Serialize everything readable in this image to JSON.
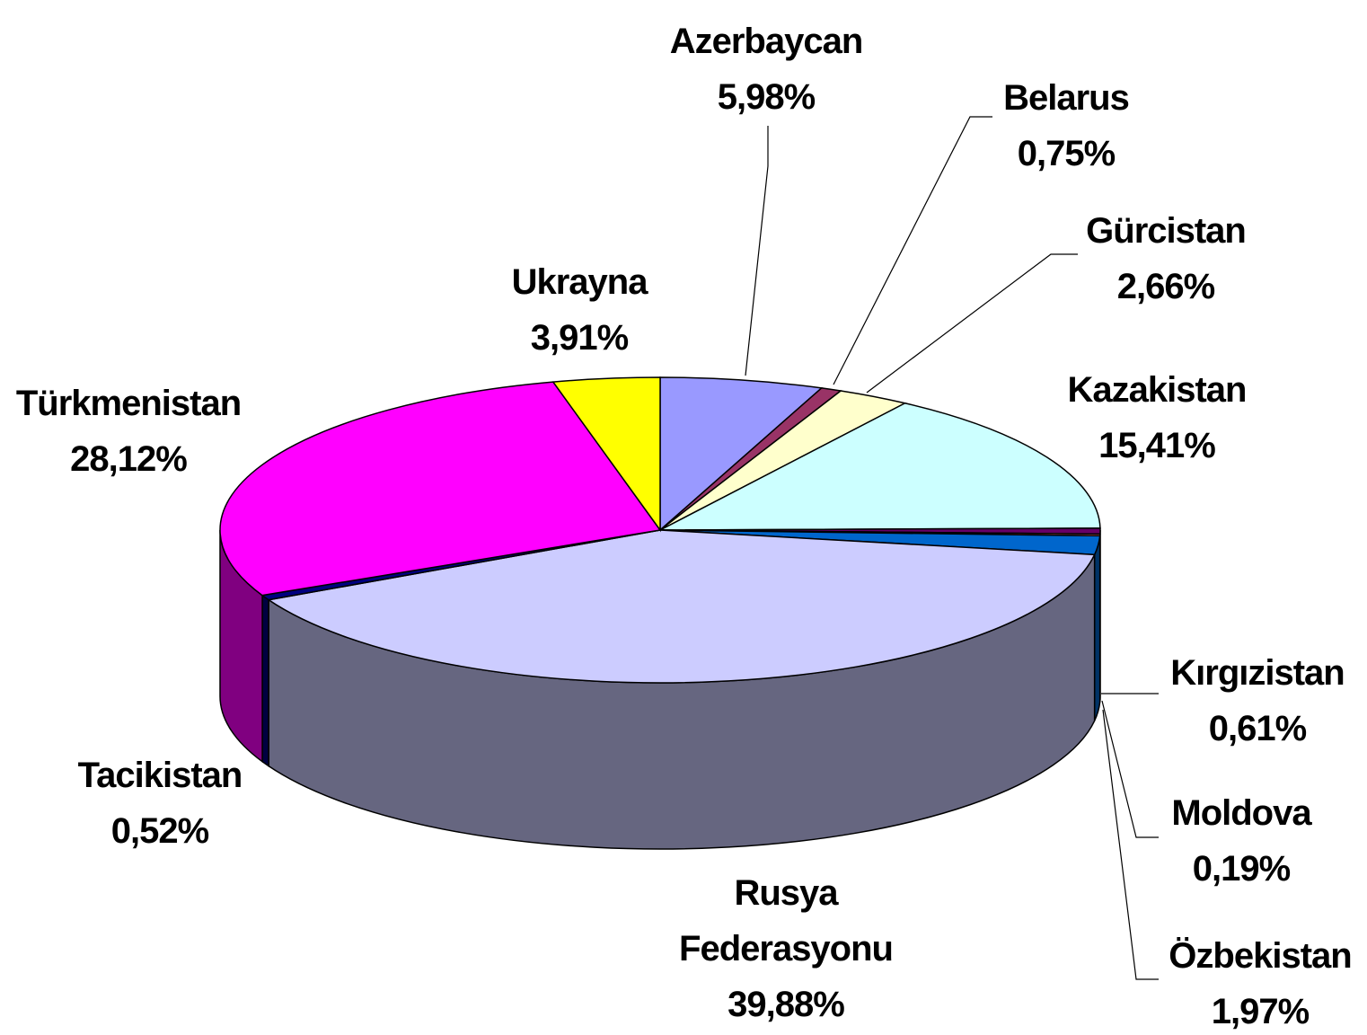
{
  "chart_data": {
    "type": "pie3d",
    "categories": [
      "Azerbaycan",
      "Belarus",
      "Gürcistan",
      "Kazakistan",
      "Kırgızistan",
      "Moldova",
      "Özbekistan",
      "Rusya Federasyonu",
      "Tacikistan",
      "Türkmenistan",
      "Ukrayna"
    ],
    "values": [
      5.98,
      0.75,
      2.66,
      15.41,
      0.61,
      0.19,
      1.97,
      39.88,
      0.52,
      28.12,
      3.91
    ],
    "value_labels": [
      "5,98%",
      "0,75%",
      "2,66%",
      "15,41%",
      "0,61%",
      "0,19%",
      "1,97%",
      "39,88%",
      "0,52%",
      "28,12%",
      "3,91%"
    ],
    "colors": [
      "#9999ff",
      "#993366",
      "#ffffcc",
      "#ccffff",
      "#660066",
      "#ff8080",
      "#0066cc",
      "#ccccff",
      "#000080",
      "#ff00ff",
      "#ffff00"
    ]
  }
}
